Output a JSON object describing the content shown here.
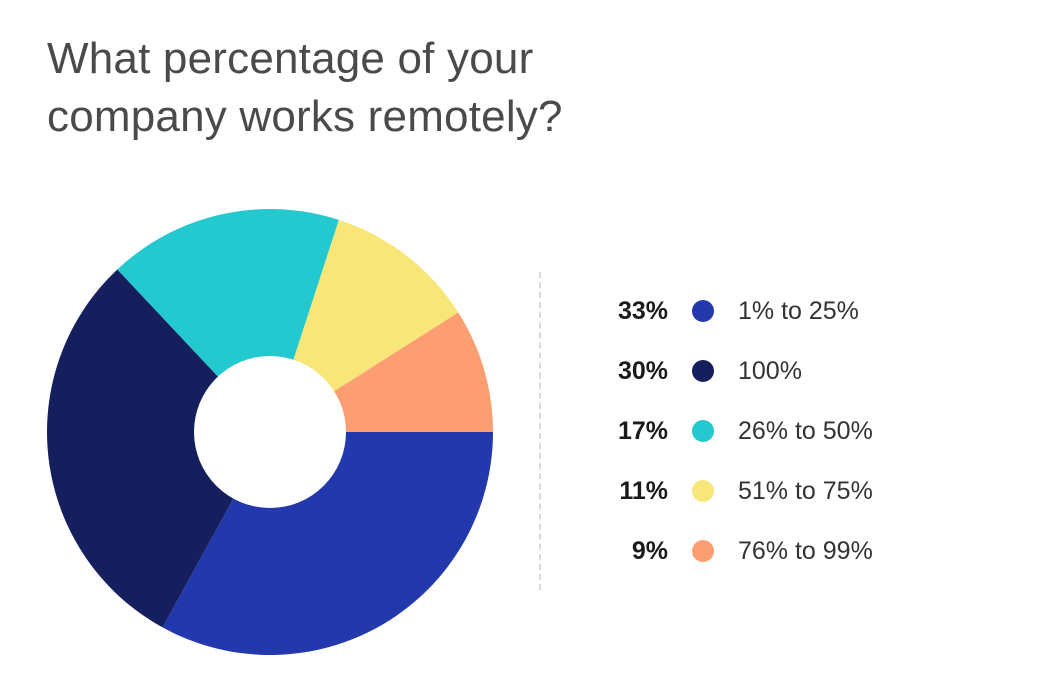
{
  "title": "What percentage of your\ncompany works remotely?",
  "chart_data": {
    "type": "pie",
    "title": "What percentage of your company works remotely?",
    "donut": true,
    "legend_position": "right",
    "slices": [
      {
        "label": "1% to 25%",
        "value": 33,
        "display": "33%",
        "color": "#2338ac"
      },
      {
        "label": "100%",
        "value": 30,
        "display": "30%",
        "color": "#151f5e"
      },
      {
        "label": "26% to 50%",
        "value": 17,
        "display": "17%",
        "color": "#24c8cf"
      },
      {
        "label": "51% to 75%",
        "value": 11,
        "display": "11%",
        "color": "#f9e678"
      },
      {
        "label": "76% to 99%",
        "value": 9,
        "display": "9%",
        "color": "#fc9e72"
      }
    ]
  }
}
